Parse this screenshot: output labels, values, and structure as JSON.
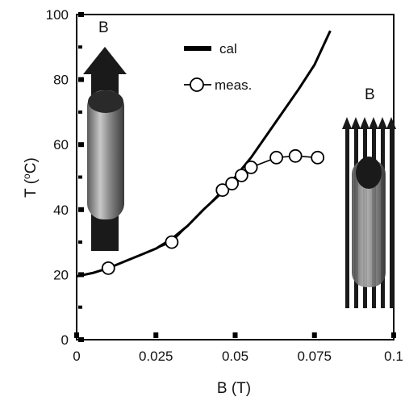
{
  "chart_data": {
    "type": "line",
    "xlabel": "B (T)",
    "ylabel": "T (°C)",
    "ylabel_parts": {
      "name": "T (",
      "degree": "o",
      "unit": "C)"
    },
    "xlim": [
      0,
      0.1
    ],
    "ylim": [
      0,
      100
    ],
    "x_ticks": [
      0,
      0.025,
      0.05,
      0.075,
      0.1
    ],
    "x_tick_labels": [
      "0",
      "0.025",
      "0.05",
      "0.075",
      "0.1"
    ],
    "y_ticks": [
      0,
      20,
      40,
      60,
      80,
      100
    ],
    "y_tick_labels": [
      "0",
      "20",
      "40",
      "60",
      "80",
      "100"
    ],
    "grid": false,
    "legend_placement": "top-center",
    "series": [
      {
        "name": "cal",
        "style": "solid-line",
        "color": "#000000",
        "x": [
          0,
          0.005,
          0.01,
          0.015,
          0.02,
          0.025,
          0.03,
          0.035,
          0.04,
          0.045,
          0.05,
          0.055,
          0.06,
          0.065,
          0.07,
          0.075,
          0.08
        ],
        "y": [
          19.5,
          20.5,
          22,
          24,
          26,
          28,
          31,
          35,
          40,
          44.5,
          50,
          56,
          63,
          70,
          77,
          84.5,
          95
        ]
      },
      {
        "name": "meas.",
        "style": "line-with-open-circles",
        "color": "#000000",
        "x": [
          0.01,
          0.03,
          0.046,
          0.049,
          0.052,
          0.055,
          0.063,
          0.069,
          0.076
        ],
        "y": [
          22,
          30,
          46,
          48,
          50.5,
          53,
          56,
          56.5,
          56
        ]
      }
    ],
    "insets": [
      {
        "label": "B",
        "description": "sample under single field arrow"
      },
      {
        "label": "B",
        "description": "sample under multiple field arrows"
      }
    ]
  }
}
